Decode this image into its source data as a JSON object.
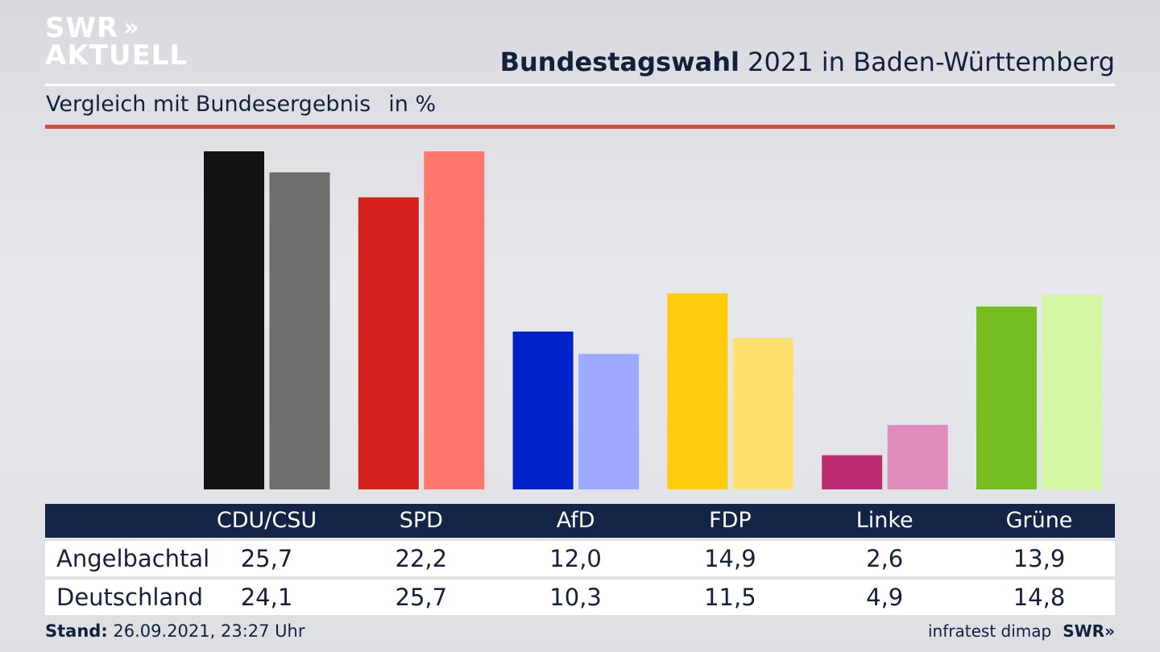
{
  "brand": {
    "logo_line1": "SWR",
    "logo_chevrons": "»",
    "logo_line2": "AKTUELL"
  },
  "header": {
    "title_bold": "Bundestagswahl",
    "title_rest": " 2021 in Baden-Württemberg",
    "subtitle": "Vergleich mit Bundesergebnis",
    "unit": "in %"
  },
  "chart_data": {
    "type": "bar",
    "categories": [
      "CDU/CSU",
      "SPD",
      "AfD",
      "FDP",
      "Linke",
      "Grüne"
    ],
    "series": [
      {
        "name": "Angelbachtal",
        "values": [
          25.7,
          22.2,
          12.0,
          14.9,
          2.6,
          13.9
        ],
        "colors": [
          "#121212",
          "#d51e1e",
          "#0121c8",
          "#ffcb0c",
          "#bd2c73",
          "#76bd1f"
        ]
      },
      {
        "name": "Deutschland",
        "values": [
          24.1,
          25.7,
          10.3,
          11.5,
          4.9,
          14.8
        ],
        "colors": [
          "#6f6d6b",
          "#ff766d",
          "#9eaaff",
          "#fee070",
          "#df8bbb",
          "#d3f6a4"
        ]
      }
    ],
    "ylim": [
      0,
      25.7
    ],
    "grid": false
  },
  "table": {
    "headers": [
      "CDU/CSU",
      "SPD",
      "AfD",
      "FDP",
      "Linke",
      "Grüne"
    ],
    "rows": [
      {
        "label": "Angelbachtal",
        "values": [
          "25,7",
          "22,2",
          "12,0",
          "14,9",
          "2,6",
          "13,9"
        ]
      },
      {
        "label": "Deutschland",
        "values": [
          "24,1",
          "25,7",
          "10,3",
          "11,5",
          "4,9",
          "14,8"
        ]
      }
    ]
  },
  "footer": {
    "stand_label": "Stand:",
    "stand_value": " 26.09.2021, 23:27 Uhr",
    "source": "infratest dimap",
    "brand": "SWR»"
  }
}
